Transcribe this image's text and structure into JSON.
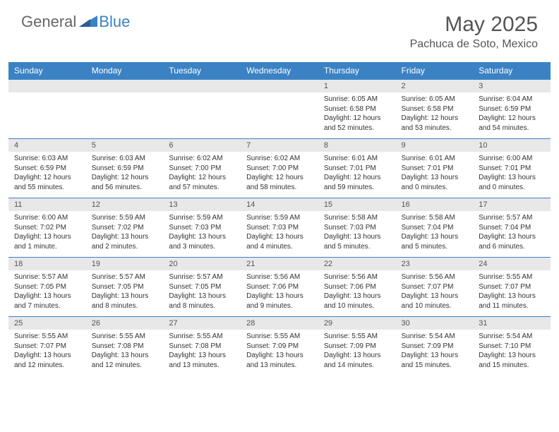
{
  "logo": {
    "general": "General",
    "blue": "Blue"
  },
  "title": "May 2025",
  "location": "Pachuca de Soto, Mexico",
  "colors": {
    "header_bg": "#3b82c4",
    "header_text": "#ffffff",
    "daynum_bg": "#e8e8e8",
    "border": "#3b82c4",
    "text": "#333333",
    "title_text": "#555555"
  },
  "day_headers": [
    "Sunday",
    "Monday",
    "Tuesday",
    "Wednesday",
    "Thursday",
    "Friday",
    "Saturday"
  ],
  "weeks": [
    [
      null,
      null,
      null,
      null,
      {
        "n": "1",
        "sr": "6:05 AM",
        "ss": "6:58 PM",
        "dl": "12 hours and 52 minutes."
      },
      {
        "n": "2",
        "sr": "6:05 AM",
        "ss": "6:58 PM",
        "dl": "12 hours and 53 minutes."
      },
      {
        "n": "3",
        "sr": "6:04 AM",
        "ss": "6:59 PM",
        "dl": "12 hours and 54 minutes."
      }
    ],
    [
      {
        "n": "4",
        "sr": "6:03 AM",
        "ss": "6:59 PM",
        "dl": "12 hours and 55 minutes."
      },
      {
        "n": "5",
        "sr": "6:03 AM",
        "ss": "6:59 PM",
        "dl": "12 hours and 56 minutes."
      },
      {
        "n": "6",
        "sr": "6:02 AM",
        "ss": "7:00 PM",
        "dl": "12 hours and 57 minutes."
      },
      {
        "n": "7",
        "sr": "6:02 AM",
        "ss": "7:00 PM",
        "dl": "12 hours and 58 minutes."
      },
      {
        "n": "8",
        "sr": "6:01 AM",
        "ss": "7:01 PM",
        "dl": "12 hours and 59 minutes."
      },
      {
        "n": "9",
        "sr": "6:01 AM",
        "ss": "7:01 PM",
        "dl": "13 hours and 0 minutes."
      },
      {
        "n": "10",
        "sr": "6:00 AM",
        "ss": "7:01 PM",
        "dl": "13 hours and 0 minutes."
      }
    ],
    [
      {
        "n": "11",
        "sr": "6:00 AM",
        "ss": "7:02 PM",
        "dl": "13 hours and 1 minute."
      },
      {
        "n": "12",
        "sr": "5:59 AM",
        "ss": "7:02 PM",
        "dl": "13 hours and 2 minutes."
      },
      {
        "n": "13",
        "sr": "5:59 AM",
        "ss": "7:03 PM",
        "dl": "13 hours and 3 minutes."
      },
      {
        "n": "14",
        "sr": "5:59 AM",
        "ss": "7:03 PM",
        "dl": "13 hours and 4 minutes."
      },
      {
        "n": "15",
        "sr": "5:58 AM",
        "ss": "7:03 PM",
        "dl": "13 hours and 5 minutes."
      },
      {
        "n": "16",
        "sr": "5:58 AM",
        "ss": "7:04 PM",
        "dl": "13 hours and 5 minutes."
      },
      {
        "n": "17",
        "sr": "5:57 AM",
        "ss": "7:04 PM",
        "dl": "13 hours and 6 minutes."
      }
    ],
    [
      {
        "n": "18",
        "sr": "5:57 AM",
        "ss": "7:05 PM",
        "dl": "13 hours and 7 minutes."
      },
      {
        "n": "19",
        "sr": "5:57 AM",
        "ss": "7:05 PM",
        "dl": "13 hours and 8 minutes."
      },
      {
        "n": "20",
        "sr": "5:57 AM",
        "ss": "7:05 PM",
        "dl": "13 hours and 8 minutes."
      },
      {
        "n": "21",
        "sr": "5:56 AM",
        "ss": "7:06 PM",
        "dl": "13 hours and 9 minutes."
      },
      {
        "n": "22",
        "sr": "5:56 AM",
        "ss": "7:06 PM",
        "dl": "13 hours and 10 minutes."
      },
      {
        "n": "23",
        "sr": "5:56 AM",
        "ss": "7:07 PM",
        "dl": "13 hours and 10 minutes."
      },
      {
        "n": "24",
        "sr": "5:55 AM",
        "ss": "7:07 PM",
        "dl": "13 hours and 11 minutes."
      }
    ],
    [
      {
        "n": "25",
        "sr": "5:55 AM",
        "ss": "7:07 PM",
        "dl": "13 hours and 12 minutes."
      },
      {
        "n": "26",
        "sr": "5:55 AM",
        "ss": "7:08 PM",
        "dl": "13 hours and 12 minutes."
      },
      {
        "n": "27",
        "sr": "5:55 AM",
        "ss": "7:08 PM",
        "dl": "13 hours and 13 minutes."
      },
      {
        "n": "28",
        "sr": "5:55 AM",
        "ss": "7:09 PM",
        "dl": "13 hours and 13 minutes."
      },
      {
        "n": "29",
        "sr": "5:55 AM",
        "ss": "7:09 PM",
        "dl": "13 hours and 14 minutes."
      },
      {
        "n": "30",
        "sr": "5:54 AM",
        "ss": "7:09 PM",
        "dl": "13 hours and 15 minutes."
      },
      {
        "n": "31",
        "sr": "5:54 AM",
        "ss": "7:10 PM",
        "dl": "13 hours and 15 minutes."
      }
    ]
  ],
  "labels": {
    "sunrise": "Sunrise: ",
    "sunset": "Sunset: ",
    "daylight": "Daylight: "
  }
}
